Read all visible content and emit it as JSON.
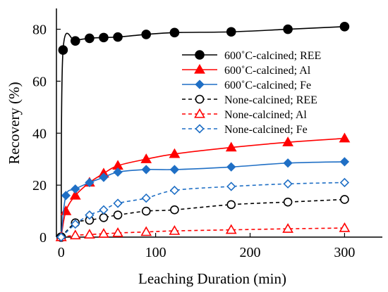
{
  "chart_data": {
    "type": "line",
    "xlabel": "Leaching Duration (min)",
    "ylabel": "Recovery (%)",
    "xlim": [
      -5,
      340
    ],
    "ylim": [
      0,
      88
    ],
    "xticks": [
      0,
      100,
      200,
      300
    ],
    "yticks": [
      0,
      20,
      40,
      60,
      80
    ],
    "grid": false,
    "legend_position": "top-right",
    "series": [
      {
        "name": "600˚C-calcined; REE",
        "color": "#000000",
        "marker": "circle",
        "filled": true,
        "dashed": false,
        "x": [
          0,
          2,
          15,
          30,
          45,
          60,
          90,
          120,
          180,
          240,
          300
        ],
        "y": [
          0,
          72,
          75.5,
          76.5,
          76.8,
          77,
          78,
          78.7,
          79,
          80,
          81
        ]
      },
      {
        "name": "600˚C-calcined; Al",
        "color": "#ff0000",
        "marker": "triangle",
        "filled": true,
        "dashed": false,
        "x": [
          0,
          5,
          15,
          30,
          45,
          60,
          90,
          120,
          180,
          240,
          300
        ],
        "y": [
          0,
          10,
          16,
          21,
          24.5,
          27.5,
          30,
          32,
          34.5,
          36.5,
          38
        ]
      },
      {
        "name": "600˚C-calcined; Fe",
        "color": "#1f6fc5",
        "marker": "diamond",
        "filled": true,
        "dashed": false,
        "x": [
          0,
          5,
          15,
          30,
          45,
          60,
          90,
          120,
          180,
          240,
          300
        ],
        "y": [
          0,
          16,
          18.5,
          21,
          23,
          25,
          26,
          26,
          27,
          28.5,
          29
        ]
      },
      {
        "name": "None-calcined; REE",
        "color": "#000000",
        "marker": "circle",
        "filled": false,
        "dashed": true,
        "x": [
          0,
          15,
          30,
          45,
          60,
          90,
          120,
          180,
          240,
          300
        ],
        "y": [
          0,
          5.5,
          6.5,
          7.5,
          8.5,
          10,
          10.5,
          12.5,
          13.5,
          14.5
        ]
      },
      {
        "name": "None-calcined; Al",
        "color": "#ff0000",
        "marker": "triangle",
        "filled": false,
        "dashed": true,
        "x": [
          0,
          15,
          30,
          45,
          60,
          90,
          120,
          180,
          240,
          300
        ],
        "y": [
          0,
          0.7,
          1,
          1.3,
          1.6,
          2,
          2.4,
          2.8,
          3.2,
          3.5
        ]
      },
      {
        "name": "None-calcined; Fe",
        "color": "#1f6fc5",
        "marker": "diamond",
        "filled": false,
        "dashed": true,
        "x": [
          0,
          15,
          30,
          45,
          60,
          90,
          120,
          180,
          240,
          300
        ],
        "y": [
          0,
          5,
          8.5,
          10.5,
          13,
          15,
          18,
          19.5,
          20.5,
          21
        ]
      }
    ]
  }
}
